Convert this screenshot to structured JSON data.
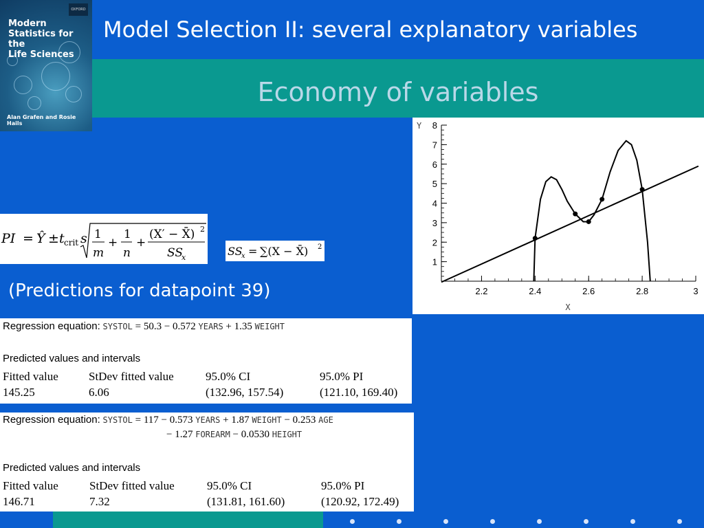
{
  "book_cover": {
    "publisher": "OXFORD",
    "title": "Modern\nStatistics for the\nLife Sciences",
    "authors": "Alan Grafen and Rosie Hails"
  },
  "header": {
    "title": "Model Selection II: several explanatory variables",
    "subtitle": "Economy of variables"
  },
  "formulas": {
    "prediction_interval": "PI = Ŷ ± t_crit s √(1/m + 1/n + (X′ − X̄)² / SS_x)",
    "ss_x": "SS_x = ∑(X − X̄)²"
  },
  "predictions_label": "(Predictions for datapoint 39)",
  "regression_1": {
    "equation_label": "Regression equation:",
    "equation_parts": [
      "SYSTOL",
      "= 50.3 − 0.572",
      "YEARS",
      "+ 1.35",
      "WEIGHT"
    ],
    "section_title": "Predicted values and intervals",
    "columns": [
      "Fitted value",
      "StDev fitted value",
      "95.0% CI",
      "95.0% PI"
    ],
    "values": [
      "145.25",
      "6.06",
      "(132.96, 157.54)",
      "(121.10, 169.40)"
    ]
  },
  "regression_2": {
    "equation_label": "Regression equation:",
    "equation_line1": [
      "SYSTOL",
      "= 117 − 0.573",
      "YEARS",
      "+ 1.87",
      "WEIGHT",
      "− 0.253",
      "AGE"
    ],
    "equation_line2": [
      "− 1.27",
      "FOREARM",
      "− 0.0530",
      "HEIGHT"
    ],
    "section_title": "Predicted values and intervals",
    "columns": [
      "Fitted value",
      "StDev fitted value",
      "95.0% CI",
      "95.0% PI"
    ],
    "values": [
      "146.71",
      "7.32",
      "(131.81, 161.60)",
      "(120.92, 172.49)"
    ]
  },
  "chart_data": {
    "type": "line",
    "xlabel": "X",
    "ylabel": "Y",
    "xlim": [
      2.05,
      3.0
    ],
    "ylim": [
      0,
      8
    ],
    "x_ticks": [
      "2.2",
      "2.4",
      "2.6",
      "2.8",
      "3"
    ],
    "x_tick_values": [
      2.2,
      2.4,
      2.6,
      2.8,
      3.0
    ],
    "y_ticks": [
      "1",
      "2",
      "3",
      "4",
      "5",
      "6",
      "7",
      "8"
    ],
    "y_tick_values": [
      1,
      2,
      3,
      4,
      5,
      6,
      7,
      8
    ],
    "points": [
      {
        "x": 2.4,
        "y": 2.2
      },
      {
        "x": 2.55,
        "y": 3.45
      },
      {
        "x": 2.6,
        "y": 3.05
      },
      {
        "x": 2.65,
        "y": 4.2
      },
      {
        "x": 2.8,
        "y": 4.7
      }
    ],
    "series": [
      {
        "x": [
          2.05,
          3.01
        ],
        "y": [
          -0.05,
          5.9
        ]
      },
      {
        "x": [
          2.395,
          2.4,
          2.42,
          2.44,
          2.46,
          2.48,
          2.5,
          2.52,
          2.55,
          2.58,
          2.6,
          2.62,
          2.65,
          2.68,
          2.71,
          2.74,
          2.76,
          2.78,
          2.8,
          2.82,
          2.83
        ],
        "y": [
          0.0,
          2.2,
          4.2,
          5.1,
          5.35,
          5.2,
          4.7,
          4.1,
          3.45,
          3.05,
          3.05,
          3.4,
          4.2,
          5.6,
          6.7,
          7.2,
          7.0,
          6.2,
          4.7,
          2.0,
          0.0
        ]
      }
    ]
  },
  "footer": {
    "dot_count": 8
  }
}
